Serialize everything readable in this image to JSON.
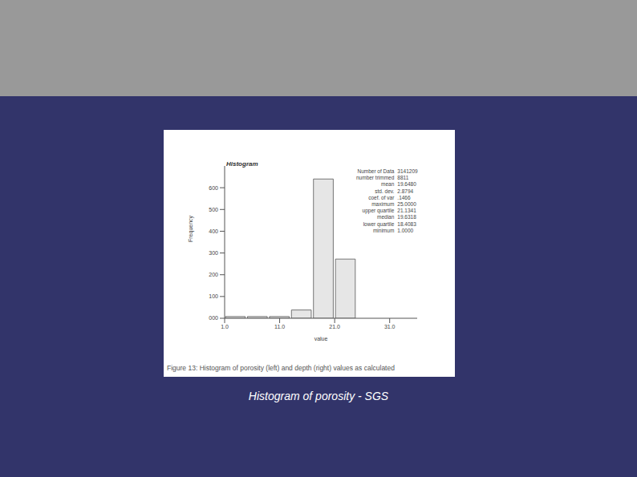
{
  "chart_data": {
    "type": "histogram",
    "title": "Histogram",
    "x_label": "value",
    "y_label": "Frequency",
    "bins": [
      1,
      5,
      9,
      13,
      17,
      21,
      25
    ],
    "values": [
      8,
      8,
      8,
      38,
      640,
      272
    ],
    "color": "#e6e6e6",
    "xlim": [
      1,
      36
    ],
    "xticks": [
      {
        "value": 1,
        "label": "1.0"
      },
      {
        "value": 11,
        "label": "11.0"
      },
      {
        "value": 21,
        "label": "21.0"
      },
      {
        "value": 31,
        "label": "31.0"
      }
    ],
    "ylim": [
      0,
      700
    ],
    "yticks": [
      {
        "value": 0,
        "label": "000"
      },
      100,
      200,
      300,
      400,
      500,
      600
    ],
    "grid": false,
    "stats": [
      [
        "Number of Data",
        "3141209"
      ],
      [
        "number trimmed",
        "8811"
      ],
      [
        "mean",
        "19.6480"
      ],
      [
        "std. dev.",
        "2.8794"
      ],
      [
        "coef. of var",
        ".1466"
      ],
      [
        "maximum",
        "25.0000"
      ],
      [
        "upper quartile",
        "21.1341"
      ],
      [
        "median",
        "19.6318"
      ],
      [
        "lower quartile",
        "18.4083"
      ],
      [
        "minimum",
        "1.0000"
      ]
    ],
    "figure_caption": "Figure 13: Histogram of porosity (left) and depth (right) values as calculated",
    "caption": "Histogram of porosity - SGS"
  }
}
